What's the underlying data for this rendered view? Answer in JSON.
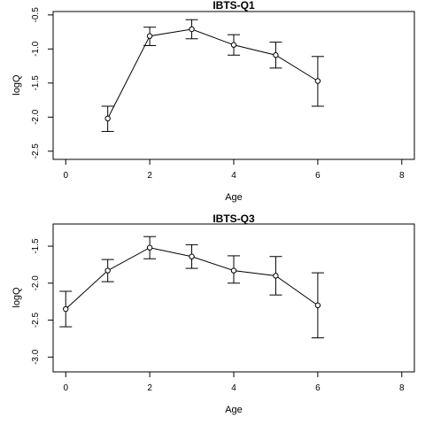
{
  "chart_data": [
    {
      "type": "scatter",
      "title": "IBTS-Q1",
      "xlabel": "Age",
      "ylabel": "logQ",
      "xlim": [
        -0.3,
        8.3
      ],
      "ylim": [
        -2.62,
        -0.45
      ],
      "xticks": [
        0,
        2,
        4,
        6,
        8
      ],
      "yticks": [
        -2.5,
        -2.0,
        -1.5,
        -1.0,
        -0.5
      ],
      "ytick_labels": [
        "-2.5",
        "-2.0",
        "-1.5",
        "-1.0",
        "-0.5"
      ],
      "grid": false,
      "series": [
        {
          "x": [
            1,
            2,
            3,
            4,
            5,
            6
          ],
          "y": [
            -2.02,
            -0.81,
            -0.71,
            -0.94,
            -1.09,
            -1.47
          ],
          "lower": [
            -2.21,
            -0.95,
            -0.85,
            -1.09,
            -1.28,
            -1.84
          ],
          "upper": [
            -1.84,
            -0.68,
            -0.57,
            -0.79,
            -0.9,
            -1.11
          ]
        }
      ]
    },
    {
      "type": "scatter",
      "title": "IBTS-Q3",
      "xlabel": "Age",
      "ylabel": "logQ",
      "xlim": [
        -0.3,
        8.3
      ],
      "ylim": [
        -3.2,
        -1.2
      ],
      "xticks": [
        0,
        2,
        4,
        6,
        8
      ],
      "yticks": [
        -3.0,
        -2.5,
        -2.0,
        -1.5
      ],
      "ytick_labels": [
        "-3.0",
        "-2.5",
        "-2.0",
        "-1.5"
      ],
      "grid": false,
      "series": [
        {
          "x": [
            0,
            1,
            2,
            3,
            4,
            5,
            6
          ],
          "y": [
            -2.35,
            -1.83,
            -1.52,
            -1.64,
            -1.83,
            -1.9,
            -2.3
          ],
          "lower": [
            -2.59,
            -1.98,
            -1.67,
            -1.8,
            -2.0,
            -2.16,
            -2.74
          ],
          "upper": [
            -2.11,
            -1.68,
            -1.37,
            -1.48,
            -1.63,
            -1.64,
            -1.86
          ]
        }
      ]
    }
  ]
}
